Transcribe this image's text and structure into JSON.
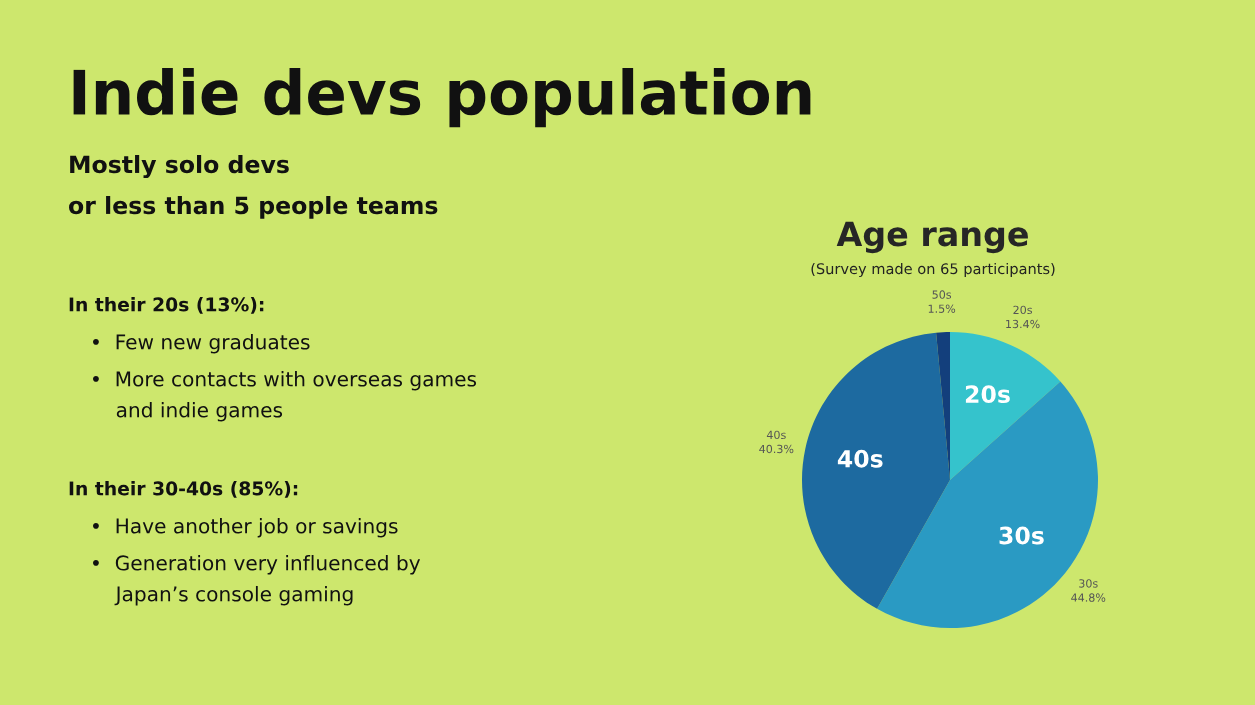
{
  "chart_data": {
    "type": "pie",
    "title": "Age range",
    "subtitle": "(Survey made on 65 participants)",
    "categories": [
      "20s",
      "30s",
      "40s",
      "50s"
    ],
    "values": [
      13.4,
      44.8,
      40.3,
      1.5
    ],
    "value_labels": [
      "13.4%",
      "44.8%",
      "40.3%",
      "1.5%"
    ],
    "colors": [
      "#35c3cc",
      "#2a9ac3",
      "#1d6aa0",
      "#133f7c"
    ],
    "legend": false,
    "annotations": [
      "Indie devs population",
      "Mostly solo devs\nor less than 5 people teams",
      "In their 20s (13%):",
      "•  Few new graduates",
      "•  More contacts with overseas games\n    and indie games",
      "In their 30-40s (85%):",
      "•  Have another job or savings",
      "•  Generation very influenced by\n    Japan’s console gaming"
    ]
  }
}
